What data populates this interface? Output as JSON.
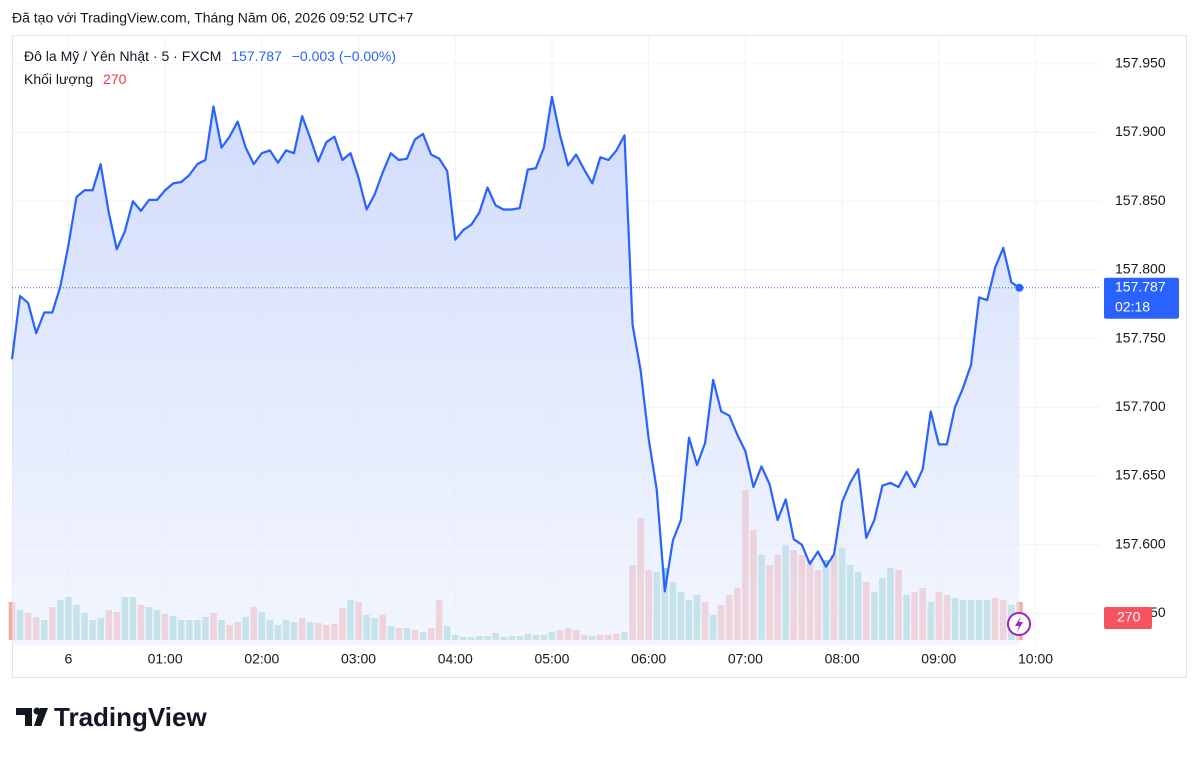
{
  "header": "Đã tạo với TradingView.com, Tháng Năm 06, 2026 09:52 UTC+7",
  "brand": "TradingView",
  "chart_data": {
    "type": "line",
    "symbol": "Đô la Mỹ / Yên Nhật · 5 · FXCM",
    "last_price": 157.787,
    "change": "−0.003 (−0.00%)",
    "countdown": "02:18",
    "volume_label": "Khối lượng",
    "color": "#2962ff",
    "grid": true,
    "xlim": [
      -35,
      640
    ],
    "xticks": [
      {
        "value": 0,
        "label": "6"
      },
      {
        "value": 60,
        "label": "01:00"
      },
      {
        "value": 120,
        "label": "02:00"
      },
      {
        "value": 180,
        "label": "03:00"
      },
      {
        "value": 240,
        "label": "04:00"
      },
      {
        "value": 300,
        "label": "05:00"
      },
      {
        "value": 360,
        "label": "06:00"
      },
      {
        "value": 420,
        "label": "07:00"
      },
      {
        "value": 480,
        "label": "08:00"
      },
      {
        "value": 540,
        "label": "09:00"
      },
      {
        "value": 600,
        "label": "10:00"
      }
    ],
    "ylim": [
      157.527,
      157.971
    ],
    "yticks": [
      {
        "value": 157.55,
        "label": "157.550"
      },
      {
        "value": 157.6,
        "label": "157.600"
      },
      {
        "value": 157.65,
        "label": "157.650"
      },
      {
        "value": 157.7,
        "label": "157.700"
      },
      {
        "value": 157.75,
        "label": "157.750"
      },
      {
        "value": 157.8,
        "label": "157.800"
      },
      {
        "value": 157.85,
        "label": "157.850"
      },
      {
        "value": 157.9,
        "label": "157.900"
      },
      {
        "value": 157.95,
        "label": "157.950"
      }
    ],
    "x": [
      -35,
      -30,
      -25,
      -20,
      -15,
      -10,
      -5,
      0,
      5,
      10,
      15,
      20,
      25,
      30,
      35,
      40,
      45,
      50,
      55,
      60,
      65,
      70,
      75,
      80,
      85,
      90,
      95,
      100,
      105,
      110,
      115,
      120,
      125,
      130,
      135,
      140,
      145,
      150,
      155,
      160,
      165,
      170,
      175,
      180,
      185,
      190,
      195,
      200,
      205,
      210,
      215,
      220,
      225,
      230,
      235,
      240,
      245,
      250,
      255,
      260,
      265,
      270,
      275,
      280,
      285,
      290,
      295,
      300,
      305,
      310,
      315,
      320,
      325,
      330,
      335,
      340,
      345,
      350,
      355,
      360,
      365,
      370,
      375,
      380,
      385,
      390,
      395,
      400,
      405,
      410,
      415,
      420,
      425,
      430,
      435,
      440,
      445,
      450,
      455,
      460,
      465,
      470,
      475,
      480,
      485,
      490,
      495,
      500,
      505,
      510,
      515,
      520,
      525,
      530,
      535,
      540,
      545,
      550,
      555,
      560,
      565,
      570,
      575,
      580,
      585,
      590
    ],
    "values": [
      157.735,
      157.781,
      157.776,
      157.754,
      157.769,
      157.769,
      157.788,
      157.818,
      157.853,
      157.858,
      157.858,
      157.877,
      157.842,
      157.815,
      157.828,
      157.85,
      157.843,
      157.851,
      157.851,
      157.858,
      157.863,
      157.864,
      157.869,
      157.877,
      157.88,
      157.919,
      157.889,
      157.897,
      157.908,
      157.889,
      157.877,
      157.885,
      157.887,
      157.878,
      157.887,
      157.885,
      157.912,
      157.896,
      157.879,
      157.893,
      157.897,
      157.88,
      157.885,
      157.867,
      157.844,
      157.855,
      157.871,
      157.885,
      157.88,
      157.881,
      157.895,
      157.899,
      157.884,
      157.881,
      157.872,
      157.822,
      157.829,
      157.833,
      157.842,
      157.86,
      157.847,
      157.844,
      157.844,
      157.845,
      157.873,
      157.874,
      157.889,
      157.926,
      157.898,
      157.876,
      157.884,
      157.873,
      157.863,
      157.882,
      157.88,
      157.887,
      157.898,
      157.76,
      157.727,
      157.677,
      157.64,
      157.566,
      157.603,
      157.618,
      157.678,
      157.658,
      157.674,
      157.72,
      157.697,
      157.694,
      157.68,
      157.668,
      157.642,
      157.657,
      157.644,
      157.618,
      157.633,
      157.604,
      157.6,
      157.586,
      157.595,
      157.584,
      157.593,
      157.631,
      157.645,
      157.655,
      157.605,
      157.618,
      157.643,
      157.645,
      157.642,
      157.653,
      157.642,
      157.655,
      157.697,
      157.673,
      157.673,
      157.7,
      157.714,
      157.731,
      157.78,
      157.778,
      157.802,
      157.816,
      157.791,
      157.787
    ],
    "volume": {
      "values": [
        270,
        213,
        192,
        163,
        142,
        234,
        284,
        305,
        249,
        192,
        142,
        156,
        213,
        199,
        305,
        305,
        249,
        234,
        213,
        185,
        170,
        142,
        142,
        142,
        163,
        192,
        142,
        107,
        128,
        163,
        234,
        199,
        142,
        107,
        142,
        128,
        156,
        128,
        121,
        107,
        114,
        227,
        284,
        270,
        178,
        156,
        178,
        99,
        85,
        85,
        71,
        57,
        85,
        284,
        99,
        36,
        21,
        21,
        28,
        28,
        50,
        21,
        28,
        28,
        43,
        36,
        36,
        57,
        71,
        85,
        71,
        36,
        28,
        36,
        36,
        43,
        57,
        533,
        866,
        497,
        483,
        511,
        412,
        341,
        284,
        320,
        270,
        178,
        249,
        320,
        369,
        1065,
        781,
        604,
        533,
        604,
        675,
        639,
        604,
        568,
        497,
        568,
        604,
        653,
        533,
        483,
        412,
        341,
        440,
        511,
        497,
        320,
        341,
        369,
        270,
        341,
        320,
        298,
        284,
        284,
        284,
        284,
        298,
        284,
        249,
        270
      ],
      "colors": [
        "#f7a9a7",
        "#92d2cc",
        "#f7a9a7",
        "#f7a9a7",
        "#92d2cc",
        "#f7a9a7",
        "#92d2cc",
        "#92d2cc",
        "#92d2cc",
        "#92d2cc",
        "#92d2cc",
        "#92d2cc",
        "#f7a9a7",
        "#f7a9a7",
        "#92d2cc",
        "#92d2cc",
        "#f7a9a7",
        "#92d2cc",
        "#92d2cc",
        "#f7a9a7",
        "#92d2cc",
        "#92d2cc",
        "#92d2cc",
        "#92d2cc",
        "#92d2cc",
        "#f7a9a7",
        "#92d2cc",
        "#f7a9a7",
        "#f7a9a7",
        "#92d2cc",
        "#f7a9a7",
        "#92d2cc",
        "#92d2cc",
        "#92d2cc",
        "#92d2cc",
        "#92d2cc",
        "#f7a9a7",
        "#92d2cc",
        "#f7a9a7",
        "#f7a9a7",
        "#f7a9a7",
        "#f7a9a7",
        "#92d2cc",
        "#f7a9a7",
        "#92d2cc",
        "#92d2cc",
        "#f7a9a7",
        "#92d2cc",
        "#f7a9a7",
        "#92d2cc",
        "#f7a9a7",
        "#92d2cc",
        "#f7a9a7",
        "#f7a9a7",
        "#92d2cc",
        "#92d2cc",
        "#92d2cc",
        "#92d2cc",
        "#92d2cc",
        "#92d2cc",
        "#92d2cc",
        "#92d2cc",
        "#92d2cc",
        "#92d2cc",
        "#92d2cc",
        "#92d2cc",
        "#92d2cc",
        "#92d2cc",
        "#f7a9a7",
        "#f7a9a7",
        "#f7a9a7",
        "#f7a9a7",
        "#92d2cc",
        "#f7a9a7",
        "#f7a9a7",
        "#f7a9a7",
        "#92d2cc",
        "#f7a9a7",
        "#f7a9a7",
        "#f7a9a7",
        "#92d2cc",
        "#92d2cc",
        "#92d2cc",
        "#92d2cc",
        "#92d2cc",
        "#92d2cc",
        "#f7a9a7",
        "#92d2cc",
        "#f7a9a7",
        "#f7a9a7",
        "#f7a9a7",
        "#f7a9a7",
        "#f7a9a7",
        "#92d2cc",
        "#f7a9a7",
        "#f7a9a7",
        "#92d2cc",
        "#f7a9a7",
        "#f7a9a7",
        "#f7a9a7",
        "#f7a9a7",
        "#92d2cc",
        "#f7a9a7",
        "#92d2cc",
        "#92d2cc",
        "#92d2cc",
        "#f7a9a7",
        "#92d2cc",
        "#92d2cc",
        "#92d2cc",
        "#f7a9a7",
        "#92d2cc",
        "#f7a9a7",
        "#f7a9a7",
        "#92d2cc",
        "#f7a9a7",
        "#f7a9a7",
        "#92d2cc",
        "#92d2cc",
        "#92d2cc",
        "#92d2cc",
        "#92d2cc",
        "#f7a9a7",
        "#f7a9a7",
        "#92d2cc",
        "#f7a9a7"
      ]
    }
  }
}
